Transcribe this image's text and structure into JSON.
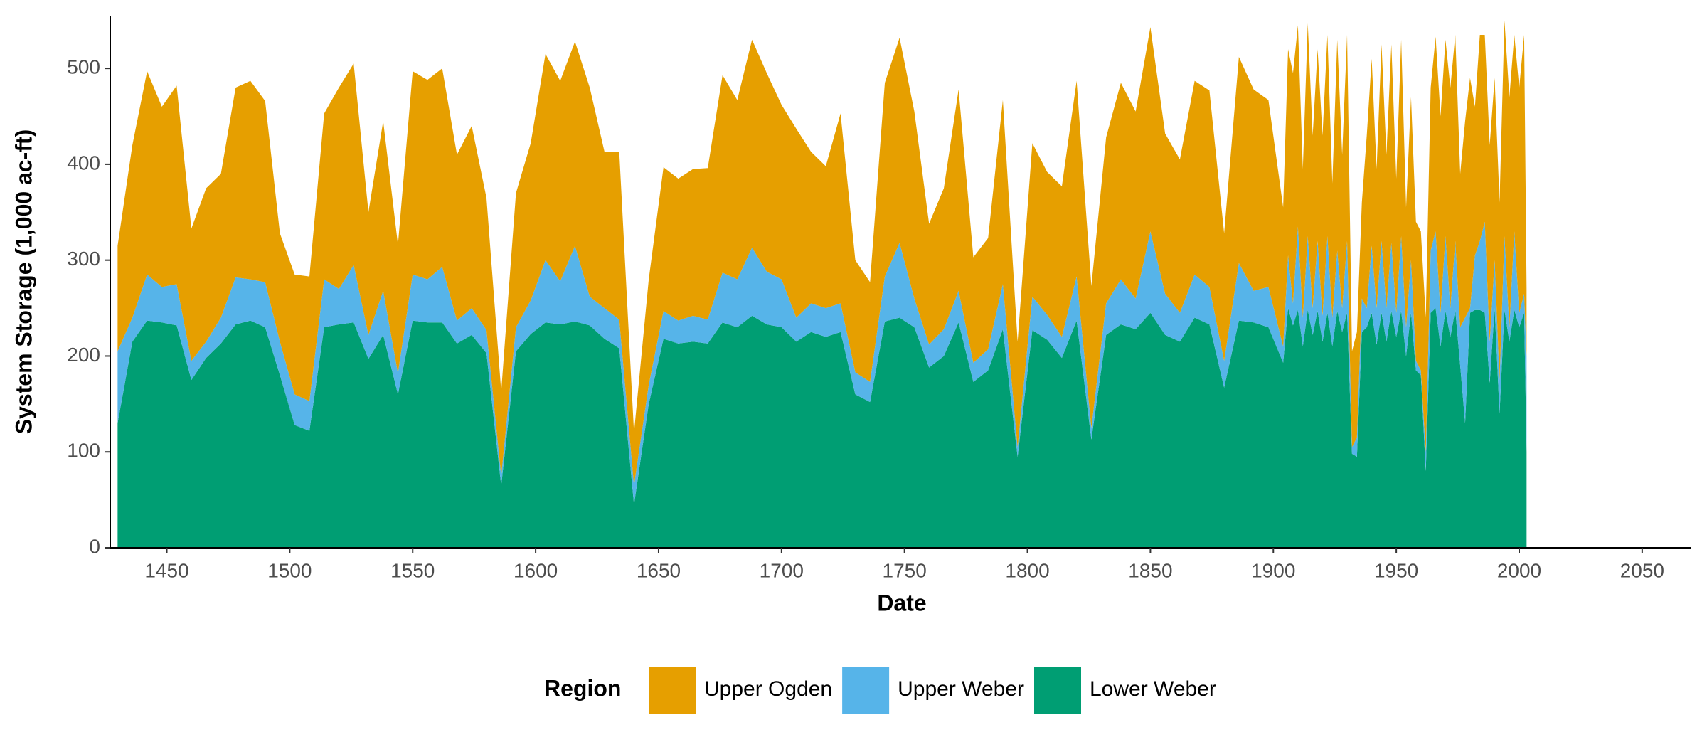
{
  "chart_data": {
    "type": "stacked_area",
    "x_label": "Date",
    "y_label": "System Storage (1,000 ac-ft)",
    "legend_title": "Region",
    "legend_position": "bottom",
    "x": [
      1430,
      1436,
      1442,
      1448,
      1454,
      1460,
      1466,
      1472,
      1478,
      1484,
      1490,
      1496,
      1502,
      1508,
      1514,
      1520,
      1526,
      1532,
      1538,
      1544,
      1550,
      1556,
      1562,
      1568,
      1574,
      1580,
      1586,
      1592,
      1598,
      1604,
      1610,
      1616,
      1622,
      1628,
      1634,
      1640,
      1646,
      1652,
      1658,
      1664,
      1670,
      1676,
      1682,
      1688,
      1694,
      1700,
      1706,
      1712,
      1718,
      1724,
      1730,
      1736,
      1742,
      1748,
      1754,
      1760,
      1766,
      1772,
      1778,
      1784,
      1790,
      1796,
      1802,
      1808,
      1814,
      1820,
      1826,
      1832,
      1838,
      1844,
      1850,
      1856,
      1862,
      1868,
      1874,
      1880,
      1886,
      1892,
      1898,
      1904,
      1906,
      1908,
      1910,
      1912,
      1914,
      1916,
      1918,
      1920,
      1922,
      1924,
      1926,
      1928,
      1930,
      1932,
      1934,
      1936,
      1938,
      1940,
      1942,
      1944,
      1946,
      1948,
      1950,
      1952,
      1954,
      1956,
      1958,
      1960,
      1962,
      1964,
      1966,
      1968,
      1970,
      1972,
      1974,
      1976,
      1978,
      1980,
      1982,
      1984,
      1986,
      1988,
      1990,
      1992,
      1994,
      1996,
      1998,
      2000,
      2002,
      2003
    ],
    "series": [
      {
        "name": "Upper Ogden",
        "color": "#e69f00",
        "values": [
          110,
          180,
          212,
          188,
          207,
          138,
          160,
          150,
          198,
          207,
          189,
          113,
          125,
          130,
          173,
          210,
          210,
          128,
          177,
          134,
          212,
          208,
          207,
          173,
          190,
          138,
          88,
          140,
          164,
          215,
          209,
          213,
          218,
          163,
          175,
          55,
          110,
          150,
          148,
          153,
          158,
          206,
          187,
          217,
          207,
          182,
          197,
          158,
          148,
          198,
          117,
          104,
          202,
          214,
          195,
          126,
          147,
          210,
          110,
          116,
          192,
          110,
          160,
          149,
          157,
          204,
          148,
          173,
          205,
          195,
          213,
          167,
          160,
          202,
          205,
          133,
          215,
          210,
          195,
          145,
          215,
          240,
          210,
          155,
          222,
          180,
          200,
          188,
          210,
          140,
          220,
          160,
          215,
          100,
          110,
          100,
          180,
          195,
          145,
          205,
          160,
          207,
          140,
          205,
          125,
          170,
          145,
          145,
          140,
          170,
          203,
          205,
          205,
          230,
          215,
          160,
          205,
          240,
          155,
          215,
          195,
          205,
          190,
          185,
          225,
          240,
          205,
          235,
          270,
          70
        ]
      },
      {
        "name": "Upper Weber",
        "color": "#56b4e9",
        "values": [
          75,
          25,
          48,
          37,
          43,
          20,
          17,
          27,
          49,
          43,
          47,
          35,
          32,
          31,
          50,
          37,
          60,
          25,
          46,
          22,
          48,
          45,
          58,
          24,
          28,
          24,
          10,
          25,
          35,
          65,
          45,
          79,
          30,
          32,
          30,
          20,
          20,
          29,
          24,
          27,
          25,
          52,
          50,
          71,
          55,
          50,
          25,
          30,
          30,
          30,
          23,
          21,
          47,
          78,
          30,
          24,
          28,
          33,
          20,
          22,
          47,
          10,
          35,
          26,
          22,
          46,
          12,
          33,
          47,
          32,
          85,
          43,
          30,
          45,
          39,
          28,
          60,
          33,
          42,
          17,
          55,
          23,
          87,
          30,
          77,
          28,
          73,
          27,
          80,
          30,
          63,
          25,
          75,
          7,
          20,
          35,
          20,
          70,
          38,
          75,
          35,
          71,
          25,
          78,
          30,
          55,
          10,
          5,
          20,
          65,
          80,
          35,
          78,
          30,
          72,
          40,
          110,
          5,
          57,
          72,
          95,
          43,
          50,
          35,
          77,
          15,
          82,
          15,
          20,
          100
        ]
      },
      {
        "name": "Lower Weber",
        "color": "#009e73",
        "values": [
          130,
          215,
          237,
          235,
          232,
          175,
          198,
          213,
          233,
          237,
          230,
          180,
          128,
          122,
          230,
          233,
          235,
          197,
          222,
          160,
          237,
          235,
          235,
          213,
          222,
          203,
          65,
          205,
          223,
          235,
          233,
          236,
          232,
          218,
          208,
          45,
          150,
          218,
          213,
          215,
          213,
          235,
          230,
          242,
          233,
          230,
          215,
          225,
          220,
          225,
          160,
          152,
          236,
          240,
          230,
          188,
          200,
          235,
          173,
          185,
          228,
          95,
          227,
          217,
          198,
          237,
          113,
          222,
          233,
          228,
          245,
          222,
          215,
          240,
          233,
          167,
          237,
          235,
          230,
          193,
          250,
          232,
          248,
          210,
          248,
          222,
          247,
          215,
          245,
          210,
          247,
          225,
          245,
          98,
          95,
          225,
          230,
          245,
          212,
          245,
          215,
          247,
          220,
          247,
          200,
          245,
          185,
          180,
          80,
          245,
          250,
          210,
          247,
          220,
          248,
          190,
          130,
          245,
          248,
          248,
          245,
          172,
          250,
          140,
          248,
          215,
          248,
          230,
          245,
          100
        ]
      }
    ],
    "xlim": [
      1427,
      2070
    ],
    "ylim": [
      0,
      555
    ],
    "xticks": [
      1450,
      1500,
      1550,
      1600,
      1650,
      1700,
      1750,
      1800,
      1850,
      1900,
      1950,
      2000,
      2050
    ],
    "yticks": [
      0,
      100,
      200,
      300,
      400,
      500
    ]
  }
}
